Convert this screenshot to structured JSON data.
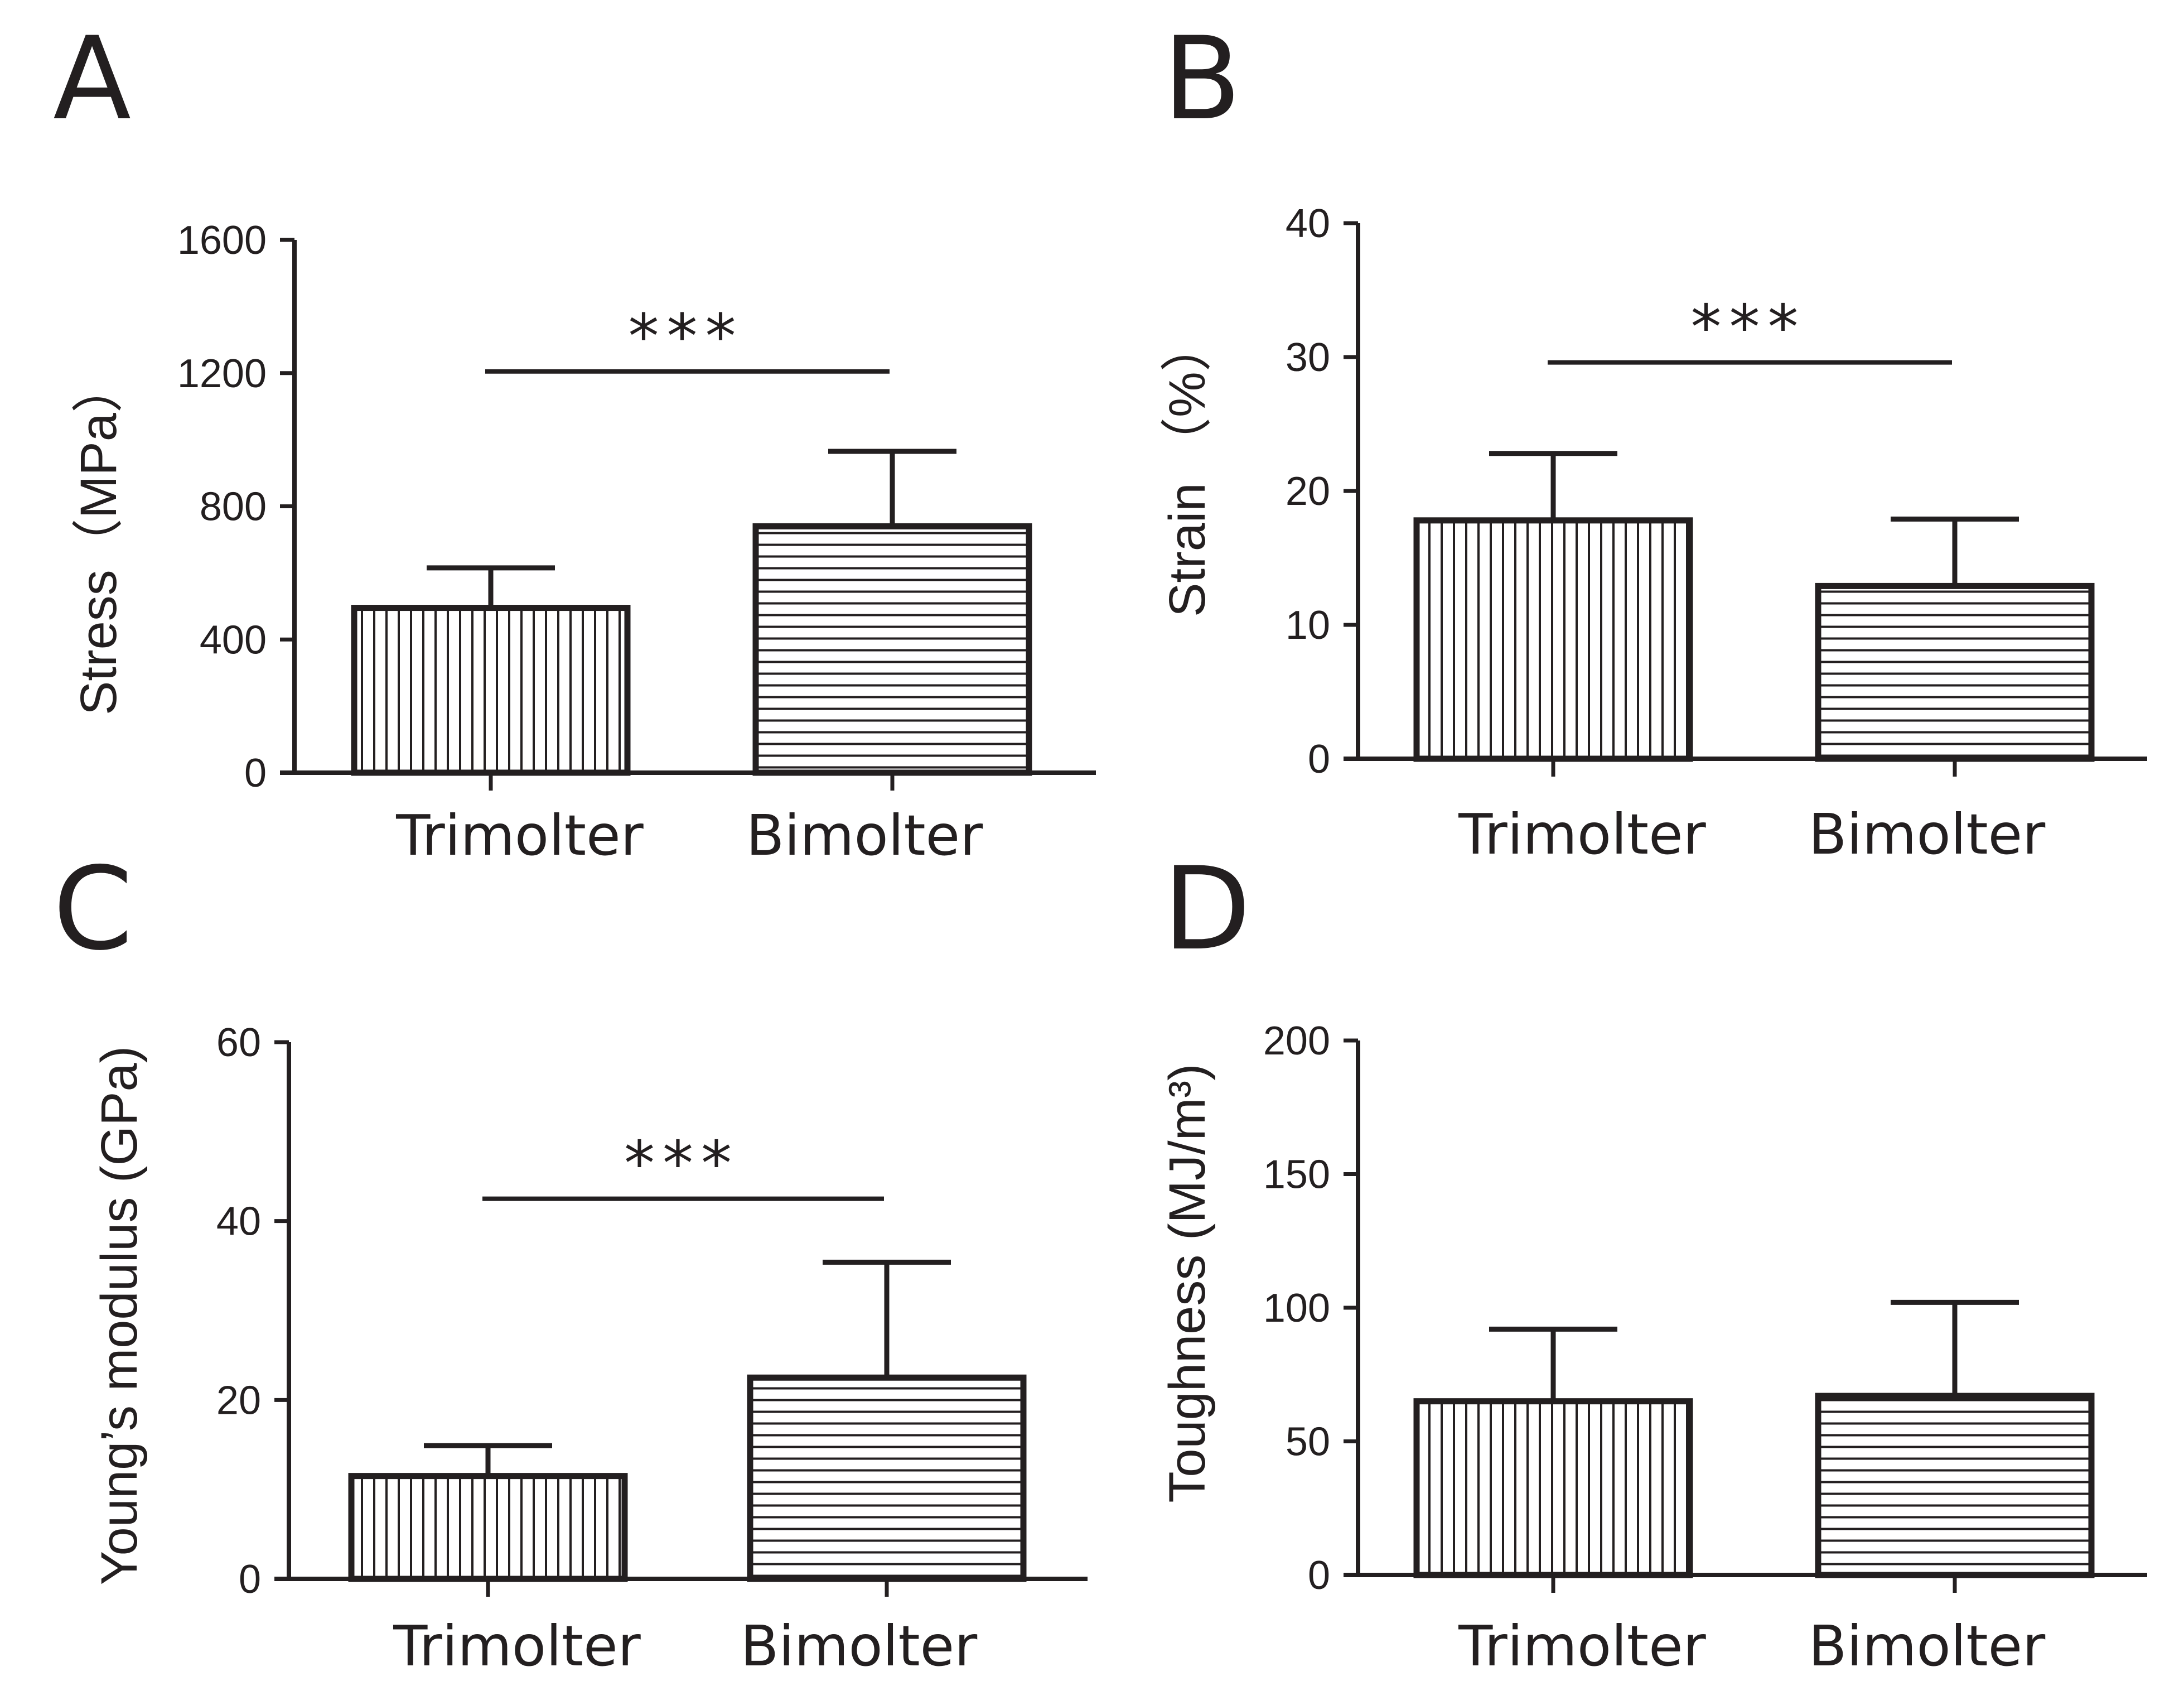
{
  "figure": {
    "panels": [
      "A",
      "B",
      "C",
      "D"
    ]
  },
  "colors": {
    "ink": "#231f20",
    "background": "#ffffff"
  },
  "chart_data": [
    {
      "panel": "A",
      "type": "bar",
      "title": "",
      "xlabel": "",
      "ylabel": "Stress（MPa）",
      "ylim": [
        0,
        1600
      ],
      "yticks": [
        0,
        400,
        800,
        1200,
        1600
      ],
      "categories": [
        "Trimolter",
        "Bimolter"
      ],
      "values": [
        495,
        740
      ],
      "errors": [
        120,
        225
      ],
      "patterns": [
        "vertical",
        "horizontal"
      ],
      "significance": {
        "label": "***",
        "y": 1205
      }
    },
    {
      "panel": "B",
      "type": "bar",
      "title": "",
      "xlabel": "",
      "ylabel": "Strain （%）",
      "ylim": [
        0,
        40
      ],
      "yticks": [
        0,
        10,
        20,
        30,
        40
      ],
      "categories": [
        "Trimolter",
        "Bimolter"
      ],
      "values": [
        17.8,
        12.9
      ],
      "errors": [
        5.0,
        5.0
      ],
      "patterns": [
        "vertical",
        "horizontal"
      ],
      "significance": {
        "label": "***",
        "y": 29.6
      }
    },
    {
      "panel": "C",
      "type": "bar",
      "title": "",
      "xlabel": "",
      "ylabel": "Young’s modulus (GPa)",
      "ylim": [
        0,
        60
      ],
      "yticks": [
        0,
        20,
        40,
        60
      ],
      "categories": [
        "Trimolter",
        "Bimolter"
      ],
      "values": [
        11.5,
        22.5
      ],
      "errors": [
        3.4,
        12.9
      ],
      "patterns": [
        "vertical",
        "horizontal"
      ],
      "significance": {
        "label": "***",
        "y": 42.5
      }
    },
    {
      "panel": "D",
      "type": "bar",
      "title": "",
      "xlabel": "",
      "ylabel": "Toughness (MJ/m³)",
      "ylim": [
        0,
        200
      ],
      "yticks": [
        0,
        50,
        100,
        150,
        200
      ],
      "categories": [
        "Trimolter",
        "Bimolter"
      ],
      "values": [
        65,
        67
      ],
      "errors": [
        27,
        35
      ],
      "patterns": [
        "vertical",
        "horizontal"
      ],
      "significance": null
    }
  ]
}
